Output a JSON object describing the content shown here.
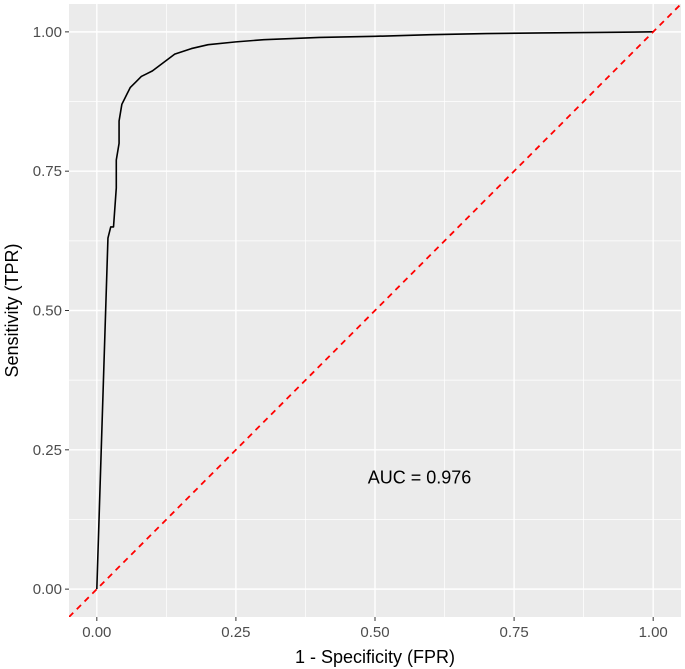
{
  "chart_data": {
    "type": "line",
    "xlabel": "1 - Specificity (FPR)",
    "ylabel": "Sensitivity (TPR)",
    "xlim": [
      -0.05,
      1.05
    ],
    "ylim": [
      -0.05,
      1.05
    ],
    "x_ticks": [
      0,
      0.25,
      0.5,
      0.75,
      1
    ],
    "x_tick_labels": [
      "0.00",
      "0.25",
      "0.50",
      "0.75",
      "1.00"
    ],
    "y_ticks": [
      0,
      0.25,
      0.5,
      0.75,
      1
    ],
    "y_tick_labels": [
      "0.00",
      "0.25",
      "0.50",
      "0.75",
      "1.00"
    ],
    "grid": true,
    "panel_background": "#ebebeb",
    "series": [
      {
        "color": "#000000",
        "style": "solid",
        "x": [
          0.0,
          0.02,
          0.025,
          0.03,
          0.035,
          0.035,
          0.04,
          0.04,
          0.045,
          0.05,
          0.055,
          0.06,
          0.07,
          0.08,
          0.09,
          0.1,
          0.12,
          0.14,
          0.17,
          0.2,
          0.25,
          0.3,
          0.4,
          0.5,
          0.6,
          0.7,
          0.8,
          0.9,
          1.0
        ],
        "y": [
          0.0,
          0.63,
          0.65,
          0.65,
          0.72,
          0.77,
          0.8,
          0.84,
          0.87,
          0.88,
          0.89,
          0.9,
          0.91,
          0.92,
          0.925,
          0.93,
          0.945,
          0.96,
          0.97,
          0.977,
          0.982,
          0.986,
          0.99,
          0.992,
          0.995,
          0.997,
          0.998,
          0.999,
          1.0
        ]
      },
      {
        "color": "#ff0000",
        "style": "dashed",
        "x": [
          -0.05,
          1.05
        ],
        "y": [
          -0.05,
          1.05
        ]
      }
    ],
    "annotations": [
      {
        "text": "AUC = 0.976",
        "x": 0.58,
        "y": 0.2
      }
    ]
  }
}
